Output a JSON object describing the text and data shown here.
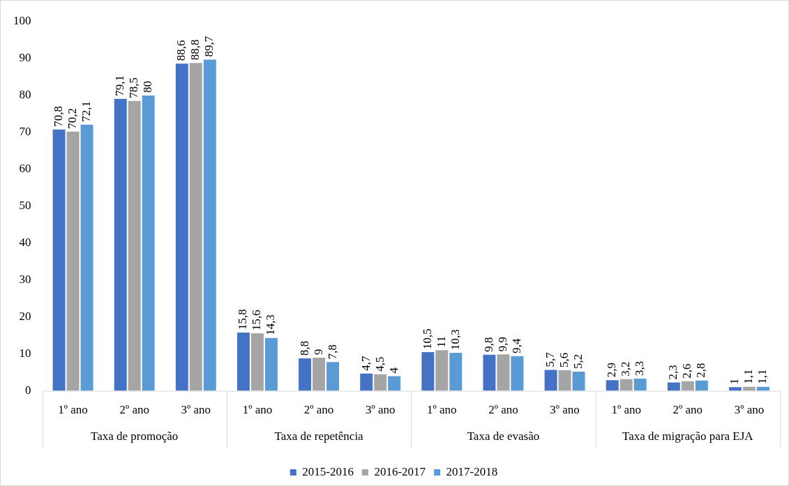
{
  "chart_data": {
    "type": "bar",
    "categories": [
      "1º ano",
      "2º ano",
      "3º ano",
      "1º ano",
      "2º ano",
      "3º ano",
      "1º ano",
      "2º ano",
      "3º ano",
      "1º ano",
      "2º ano",
      "3º ano"
    ],
    "annotations": [
      "Taxa de promoção",
      "Taxa de repetência",
      "Taxa de evasão",
      "Taxa de migração para EJA"
    ],
    "series": [
      {
        "name": "2015-2016",
        "color": "#4472c4",
        "values": [
          70.8,
          79.1,
          88.6,
          15.8,
          8.8,
          4.7,
          10.5,
          9.8,
          5.7,
          2.9,
          2.3,
          1
        ],
        "value_labels": [
          "70,8",
          "79,1",
          "88,6",
          "15,8",
          "8,8",
          "4,7",
          "10,5",
          "9,8",
          "5,7",
          "2,9",
          "2,3",
          "1"
        ]
      },
      {
        "name": "2016-2017",
        "color": "#a5a5a5",
        "values": [
          70.2,
          78.5,
          88.8,
          15.6,
          9,
          4.5,
          11,
          9.9,
          5.6,
          3.2,
          2.6,
          1.1
        ],
        "value_labels": [
          "70,2",
          "78,5",
          "88,8",
          "15,6",
          "9",
          "4,5",
          "11",
          "9,9",
          "5,6",
          "3,2",
          "2,6",
          "1,1"
        ]
      },
      {
        "name": "2017-2018",
        "color": "#5b9bd5",
        "values": [
          72.1,
          80,
          89.7,
          14.3,
          7.8,
          4,
          10.3,
          9.4,
          5.2,
          3.3,
          2.8,
          1.1
        ],
        "value_labels": [
          "72,1",
          "80",
          "89,7",
          "14,3",
          "7,8",
          "4",
          "10,3",
          "9,4",
          "5,2",
          "3,3",
          "2,8",
          "1,1"
        ]
      }
    ],
    "ylim": [
      0,
      100
    ],
    "yticks": [
      0,
      10,
      20,
      30,
      40,
      50,
      60,
      70,
      80,
      90,
      100
    ],
    "grid": false,
    "legend": "bottom"
  }
}
